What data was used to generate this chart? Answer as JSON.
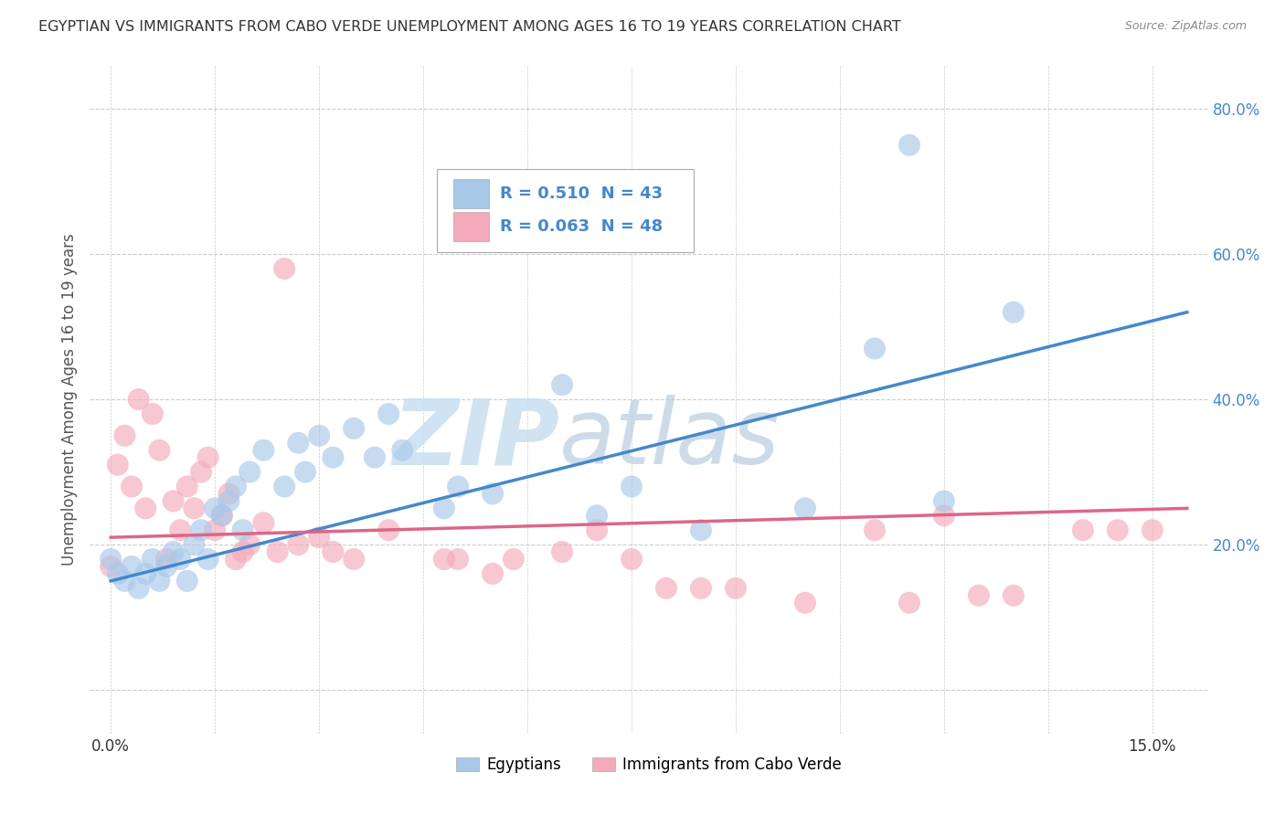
{
  "title": "EGYPTIAN VS IMMIGRANTS FROM CABO VERDE UNEMPLOYMENT AMONG AGES 16 TO 19 YEARS CORRELATION CHART",
  "source": "Source: ZipAtlas.com",
  "ylabel": "Unemployment Among Ages 16 to 19 years",
  "ylim": [
    -0.06,
    0.86
  ],
  "xlim": [
    -0.003,
    0.158
  ],
  "yticks": [
    0.0,
    0.2,
    0.4,
    0.6,
    0.8
  ],
  "ytick_labels": [
    "",
    "20.0%",
    "40.0%",
    "60.0%",
    "80.0%"
  ],
  "xticks": [
    0.0,
    0.015,
    0.03,
    0.045,
    0.06,
    0.075,
    0.09,
    0.105,
    0.12,
    0.135,
    0.15
  ],
  "blue_R": "0.510",
  "blue_N": "43",
  "pink_R": "0.063",
  "pink_N": "48",
  "blue_color": "#a8c8e8",
  "blue_line_color": "#4488cc",
  "pink_color": "#f4aabb",
  "pink_line_color": "#dd6688",
  "blue_scatter_x": [
    0.0,
    0.001,
    0.002,
    0.003,
    0.004,
    0.005,
    0.006,
    0.007,
    0.008,
    0.009,
    0.01,
    0.011,
    0.012,
    0.013,
    0.014,
    0.015,
    0.016,
    0.017,
    0.018,
    0.019,
    0.02,
    0.022,
    0.025,
    0.027,
    0.028,
    0.03,
    0.032,
    0.035,
    0.038,
    0.04,
    0.042,
    0.048,
    0.05,
    0.055,
    0.065,
    0.07,
    0.075,
    0.085,
    0.1,
    0.11,
    0.115,
    0.12,
    0.13
  ],
  "blue_scatter_y": [
    0.18,
    0.16,
    0.15,
    0.17,
    0.14,
    0.16,
    0.18,
    0.15,
    0.17,
    0.19,
    0.18,
    0.15,
    0.2,
    0.22,
    0.18,
    0.25,
    0.24,
    0.26,
    0.28,
    0.22,
    0.3,
    0.33,
    0.28,
    0.34,
    0.3,
    0.35,
    0.32,
    0.36,
    0.32,
    0.38,
    0.33,
    0.25,
    0.28,
    0.27,
    0.42,
    0.24,
    0.28,
    0.22,
    0.25,
    0.47,
    0.75,
    0.26,
    0.52
  ],
  "pink_scatter_x": [
    0.0,
    0.001,
    0.002,
    0.003,
    0.004,
    0.005,
    0.006,
    0.007,
    0.008,
    0.009,
    0.01,
    0.011,
    0.012,
    0.013,
    0.014,
    0.015,
    0.016,
    0.017,
    0.018,
    0.019,
    0.02,
    0.022,
    0.024,
    0.025,
    0.027,
    0.03,
    0.032,
    0.035,
    0.04,
    0.05,
    0.055,
    0.065,
    0.07,
    0.075,
    0.08,
    0.085,
    0.09,
    0.1,
    0.11,
    0.115,
    0.12,
    0.125,
    0.13,
    0.14,
    0.145,
    0.15,
    0.048,
    0.058
  ],
  "pink_scatter_y": [
    0.17,
    0.31,
    0.35,
    0.28,
    0.4,
    0.25,
    0.38,
    0.33,
    0.18,
    0.26,
    0.22,
    0.28,
    0.25,
    0.3,
    0.32,
    0.22,
    0.24,
    0.27,
    0.18,
    0.19,
    0.2,
    0.23,
    0.19,
    0.58,
    0.2,
    0.21,
    0.19,
    0.18,
    0.22,
    0.18,
    0.16,
    0.19,
    0.22,
    0.18,
    0.14,
    0.14,
    0.14,
    0.12,
    0.22,
    0.12,
    0.24,
    0.13,
    0.13,
    0.22,
    0.22,
    0.22,
    0.18,
    0.18
  ],
  "blue_line_x": [
    0.0,
    0.155
  ],
  "blue_line_y": [
    0.15,
    0.52
  ],
  "pink_line_x": [
    0.0,
    0.155
  ],
  "pink_line_y": [
    0.21,
    0.25
  ],
  "watermark_zip": "ZIP",
  "watermark_atlas": "atlas",
  "background_color": "#ffffff",
  "grid_color": "#cccccc",
  "legend_blue_label": "Egyptians",
  "legend_pink_label": "Immigrants from Cabo Verde"
}
